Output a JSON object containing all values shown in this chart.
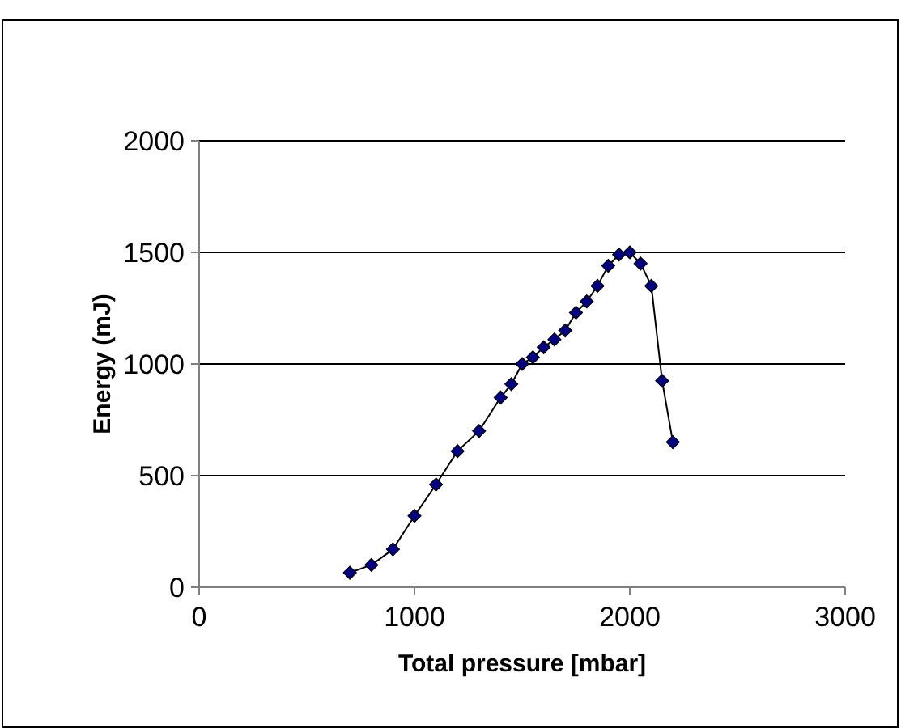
{
  "chart_data": {
    "type": "line",
    "xlabel": "Total pressure [mbar]",
    "ylabel": "Energy (mJ)",
    "xlim": [
      0,
      3000
    ],
    "xticks": [
      0,
      1000,
      2000,
      3000
    ],
    "ylim": [
      0,
      2000
    ],
    "yticks": [
      0,
      500,
      1000,
      1500,
      2000
    ],
    "grid": "y",
    "marker": "diamond",
    "line_style": "solid",
    "x": [
      700,
      800,
      900,
      1000,
      1100,
      1200,
      1300,
      1400,
      1450,
      1500,
      1550,
      1600,
      1650,
      1700,
      1750,
      1800,
      1850,
      1900,
      1950,
      2000,
      2050,
      2100,
      2150,
      2200
    ],
    "series": [
      {
        "color": "#000080",
        "values": [
          65,
          100,
          170,
          320,
          460,
          610,
          700,
          850,
          910,
          1000,
          1030,
          1075,
          1110,
          1150,
          1230,
          1280,
          1350,
          1440,
          1490,
          1500,
          1450,
          1350,
          925,
          650
        ]
      }
    ]
  }
}
